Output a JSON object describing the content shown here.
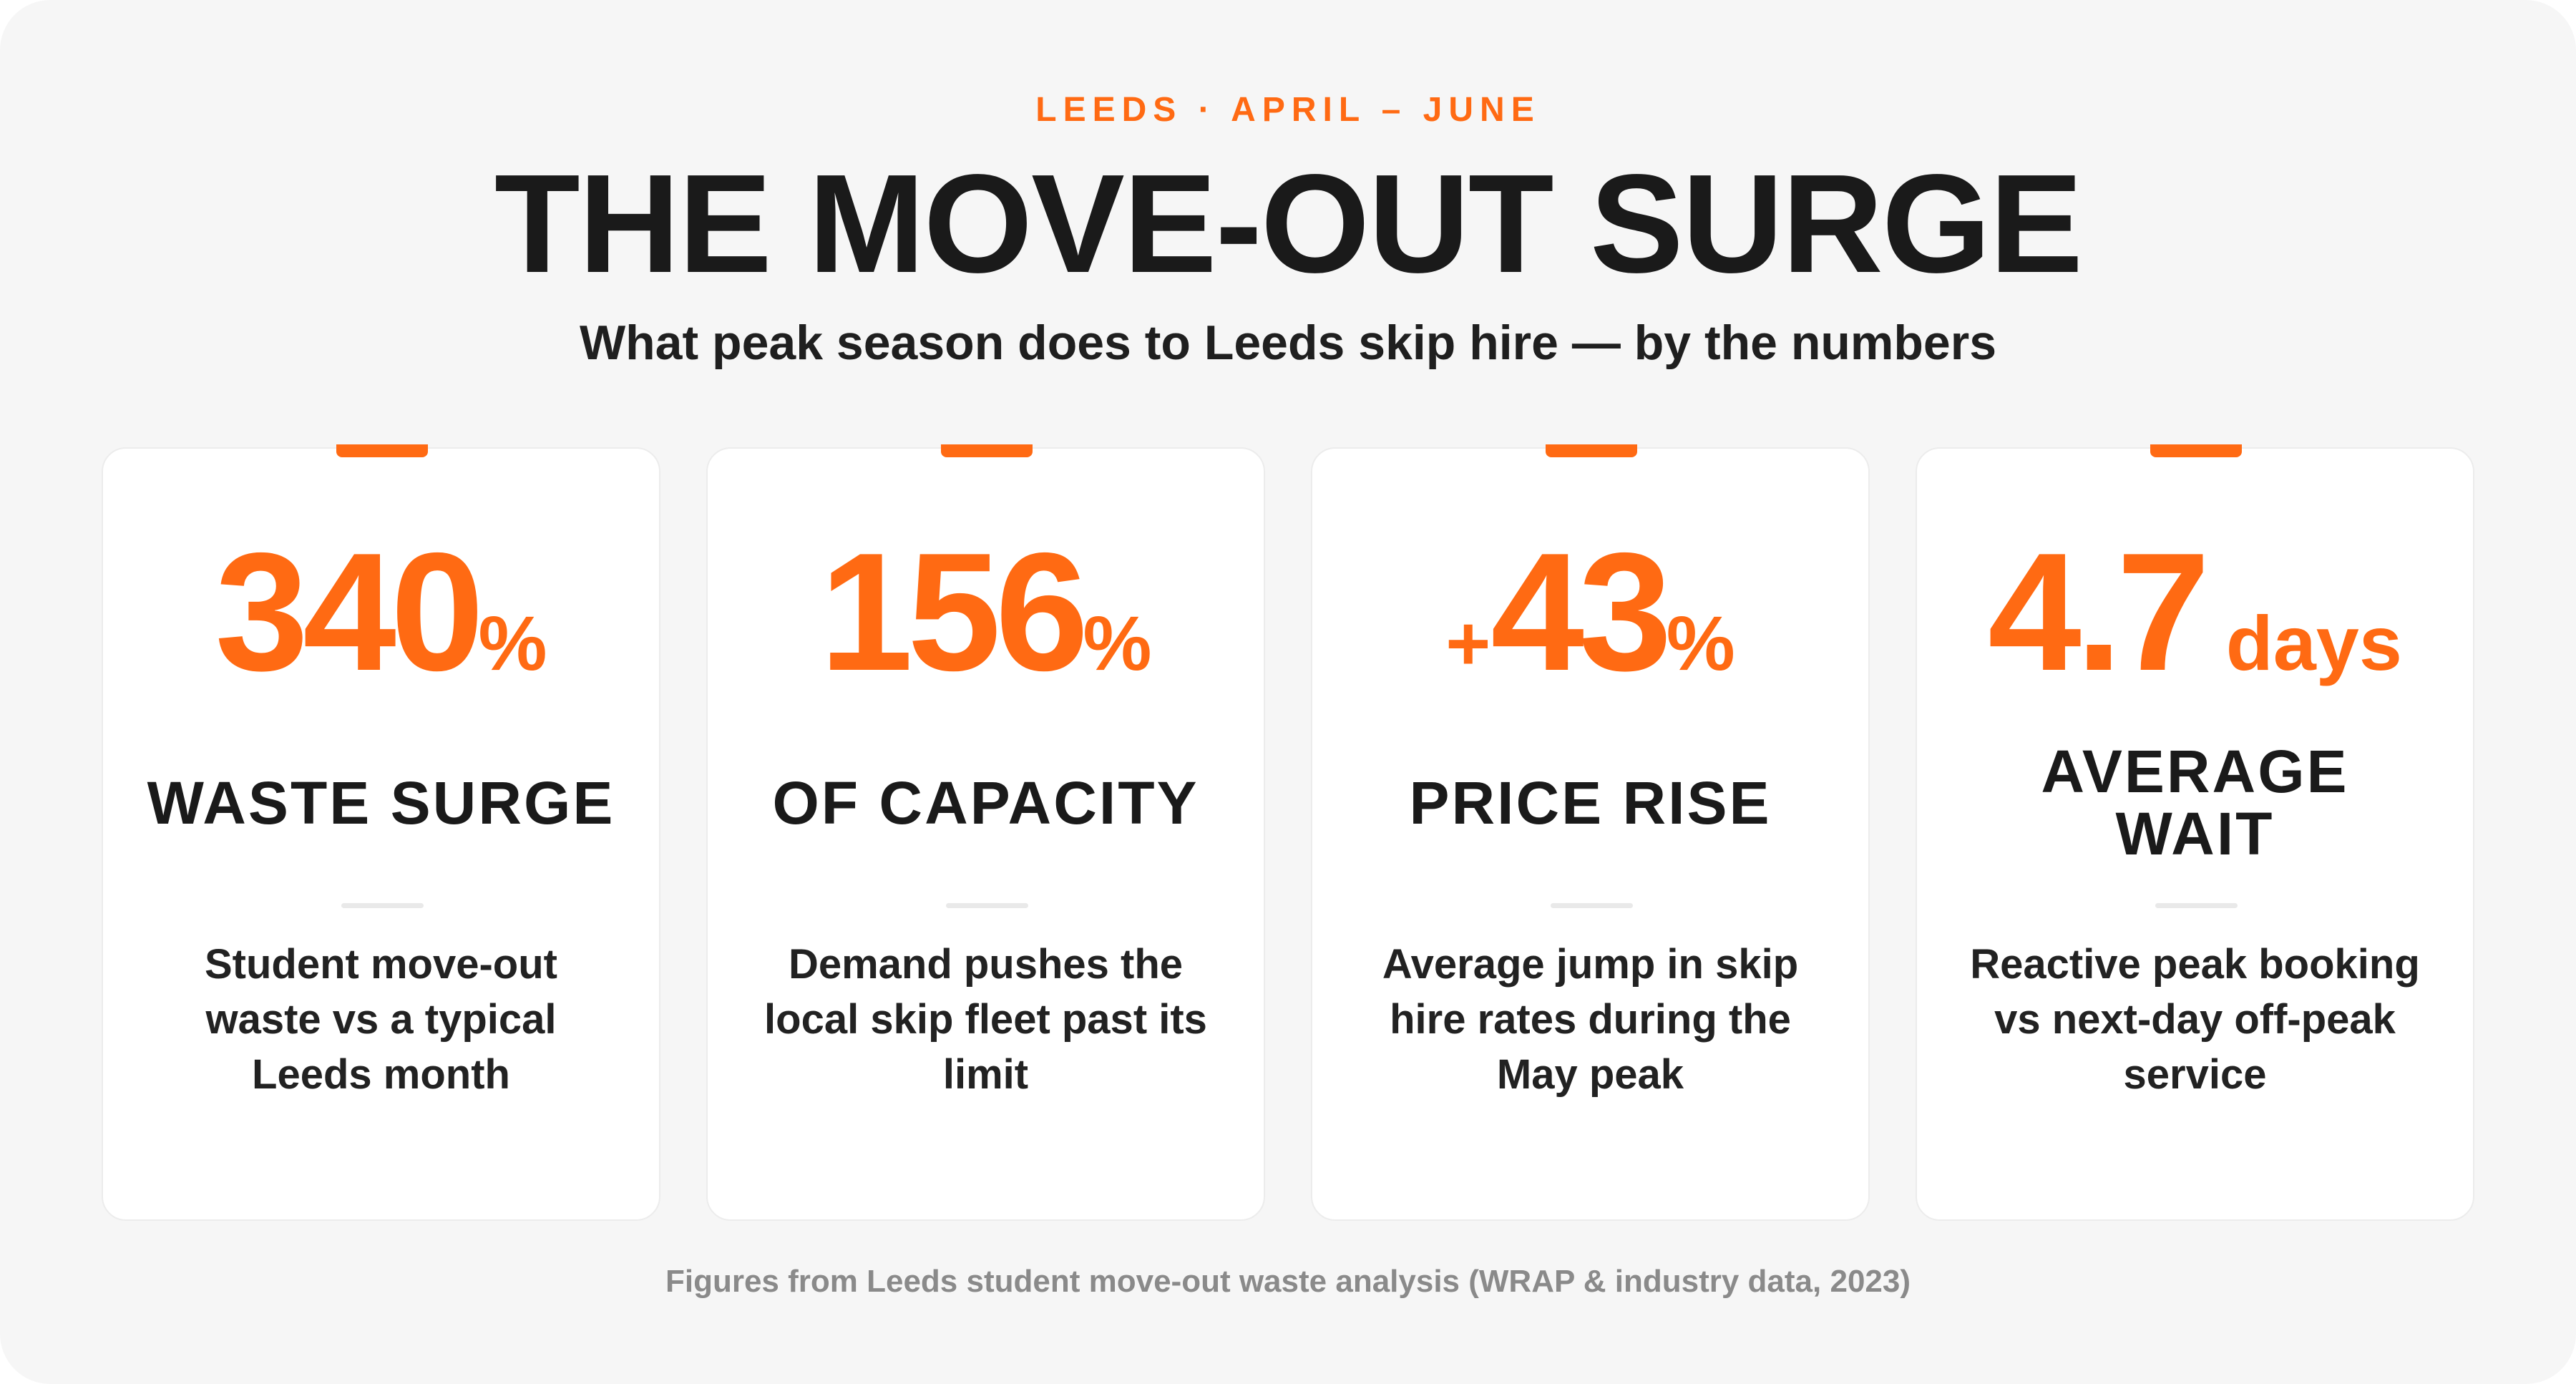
{
  "header": {
    "kicker": "LEEDS · APRIL – JUNE",
    "title": "THE MOVE-OUT SURGE",
    "subtitle": "What peak season does to Leeds skip hire — by the numbers"
  },
  "cards": [
    {
      "value": 340,
      "unit": "%",
      "label": "WASTE SURGE",
      "description": "Student move-out waste vs a typical Leeds month"
    },
    {
      "value": 156,
      "unit": "%",
      "label": "OF CAPACITY",
      "description": "Demand pushes the local skip fleet past its limit"
    },
    {
      "prefix": "+",
      "value": 43,
      "unit": "%",
      "label": "PRICE RISE",
      "description": "Average jump in skip hire rates during the May peak"
    },
    {
      "value": 4.7,
      "unit": "days",
      "label": "AVERAGE WAIT",
      "description": "Reactive peak booking vs next-day off-peak service"
    }
  ],
  "footer": "Figures from Leeds student move-out waste analysis (WRAP & industry data, 2023)"
}
